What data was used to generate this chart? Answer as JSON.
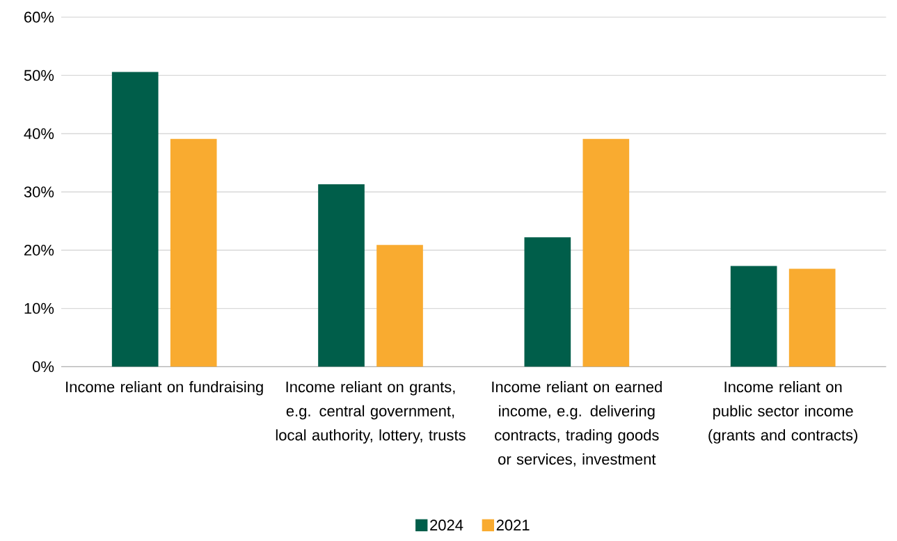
{
  "chart_data": {
    "type": "bar",
    "categories": [
      "Income reliant on fundraising",
      "Income reliant on grants, e.g. central government, local authority, lottery, trusts",
      "Income reliant on earned income, e.g. delivering contracts, trading goods or services, investment",
      "Income reliant on public sector income (grants and contracts)"
    ],
    "series": [
      {
        "name": "2024",
        "color": "#005e4a",
        "values": [
          50.6,
          31.3,
          22.2,
          17.3
        ]
      },
      {
        "name": "2021",
        "color": "#f9ab30",
        "values": [
          39.1,
          20.9,
          39.1,
          16.8
        ]
      }
    ],
    "ylim": [
      0,
      60
    ],
    "yticks": [
      {
        "value": 0,
        "label": "0%"
      },
      {
        "value": 10,
        "label": "10%"
      },
      {
        "value": 20,
        "label": "20%"
      },
      {
        "value": 30,
        "label": "30%"
      },
      {
        "value": 40,
        "label": "40%"
      },
      {
        "value": 50,
        "label": "50%"
      },
      {
        "value": 60,
        "label": "60%"
      }
    ],
    "grid": "y",
    "legend": "bottom"
  }
}
